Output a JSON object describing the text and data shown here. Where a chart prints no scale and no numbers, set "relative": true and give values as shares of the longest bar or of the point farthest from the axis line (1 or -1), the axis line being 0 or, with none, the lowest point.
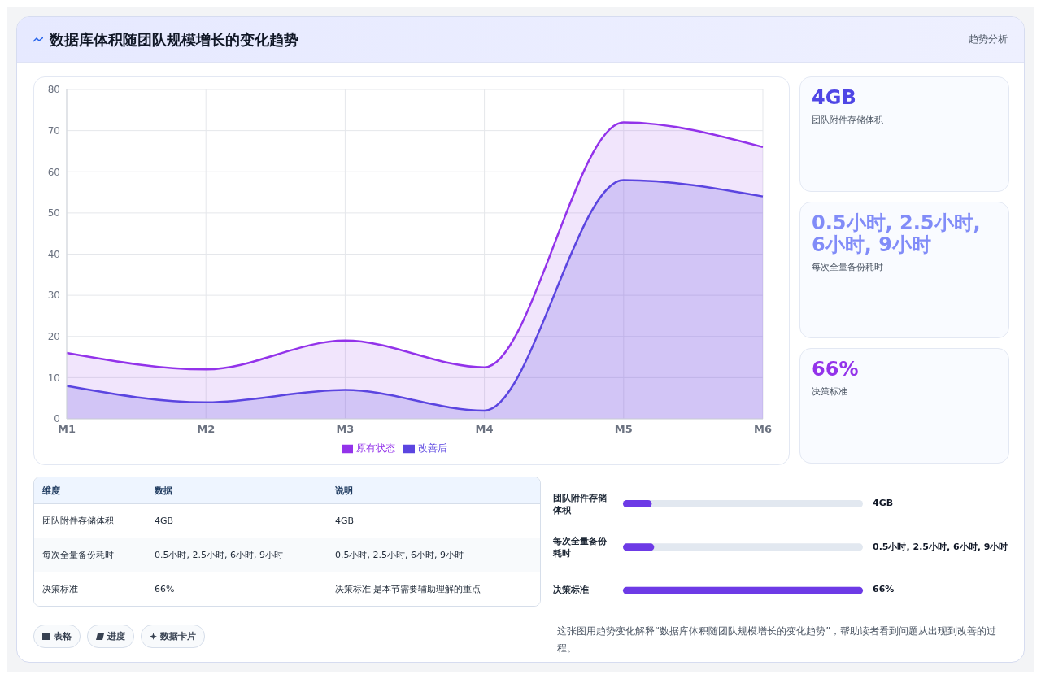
{
  "chart_data": [
    {
      "type": "area",
      "title": "数据库体积随团队规模增长的变化趋势",
      "annotations": [
        "趋势分析"
      ],
      "categories": [
        "M1",
        "M2",
        "M3",
        "M4",
        "M5",
        "M6"
      ],
      "series": [
        {
          "name": "原有状态",
          "color": "#9333ea",
          "values": [
            16,
            12,
            19,
            12.5,
            72,
            66
          ]
        },
        {
          "name": "改善后",
          "color": "#5b45e0",
          "values": [
            8,
            4,
            7,
            2,
            58,
            54
          ]
        }
      ],
      "ylim": [
        0,
        80
      ],
      "yticks": [
        0,
        10,
        20,
        30,
        40,
        50,
        60,
        70,
        80
      ],
      "grid": true,
      "legend": "bottom"
    },
    {
      "type": "other",
      "title": "4GB",
      "subtitle": "团队附件存储体积",
      "color": "#4f46e5"
    },
    {
      "type": "other",
      "title": "0.5小时, 2.5小时, 6小时, 9小时",
      "subtitle": "每次全量备份耗时",
      "color": "#818cf8"
    },
    {
      "type": "other",
      "title": "66%",
      "subtitle": "决策标准",
      "color": "#9333ea"
    },
    {
      "type": "other",
      "categories": [
        "维度",
        "数据",
        "说明"
      ],
      "y_categories": [
        "团队附件存储体积",
        "每次全量备份耗时",
        "决策标准"
      ],
      "cell_labels": [
        [
          "4GB",
          "4GB"
        ],
        [
          "0.5小时, 2.5小时, 6小时, 9小时",
          "0.5小时, 2.5小时, 6小时, 9小时"
        ],
        [
          "66%",
          "决策标准 是本节需要辅助理解的重点"
        ]
      ],
      "annotations": [
        "表格",
        "进度",
        "数据卡片"
      ]
    },
    {
      "type": "bar",
      "orientation": "horizontal",
      "relative": true,
      "categories": [
        "团队附件存储体积",
        "每次全量备份耗时",
        "决策标准"
      ],
      "values": [
        0.12,
        0.13,
        1
      ],
      "color": "#6d3ae6",
      "annotations": [
        "4GB",
        "0.5小时, 2.5小时, 6小时, 9小时",
        "66%",
        "这张图用趋势变化解释“数据库体积随团队规模增长的变化趋势”，帮助读者看到问题从出现到改善的过程。"
      ]
    }
  ]
}
